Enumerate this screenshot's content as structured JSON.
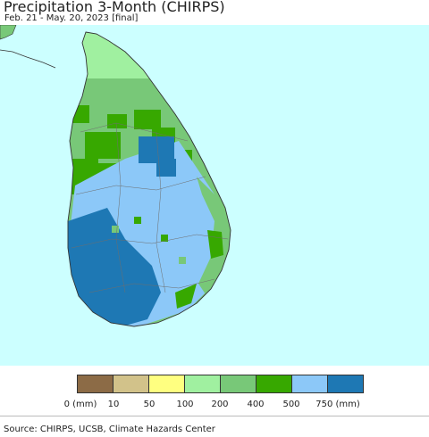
{
  "header": {
    "title": "Precipitation 3-Month (CHIRPS)",
    "subtitle": "Feb. 21 - May. 20, 2023 [final]"
  },
  "map": {
    "ocean_color": "#ccffff",
    "region": "Sri Lanka"
  },
  "legend": {
    "colors": [
      "#8c6b46",
      "#d2c28a",
      "#ffff80",
      "#a0f0a0",
      "#78c878",
      "#37a800",
      "#8cc8f8",
      "#1e78b4"
    ],
    "labels": [
      "0 (mm)",
      "10",
      "50",
      "100",
      "200",
      "400",
      "500",
      "750 (mm)"
    ]
  },
  "footer": {
    "source": "Source: CHIRPS, UCSB, Climate Hazards Center"
  }
}
